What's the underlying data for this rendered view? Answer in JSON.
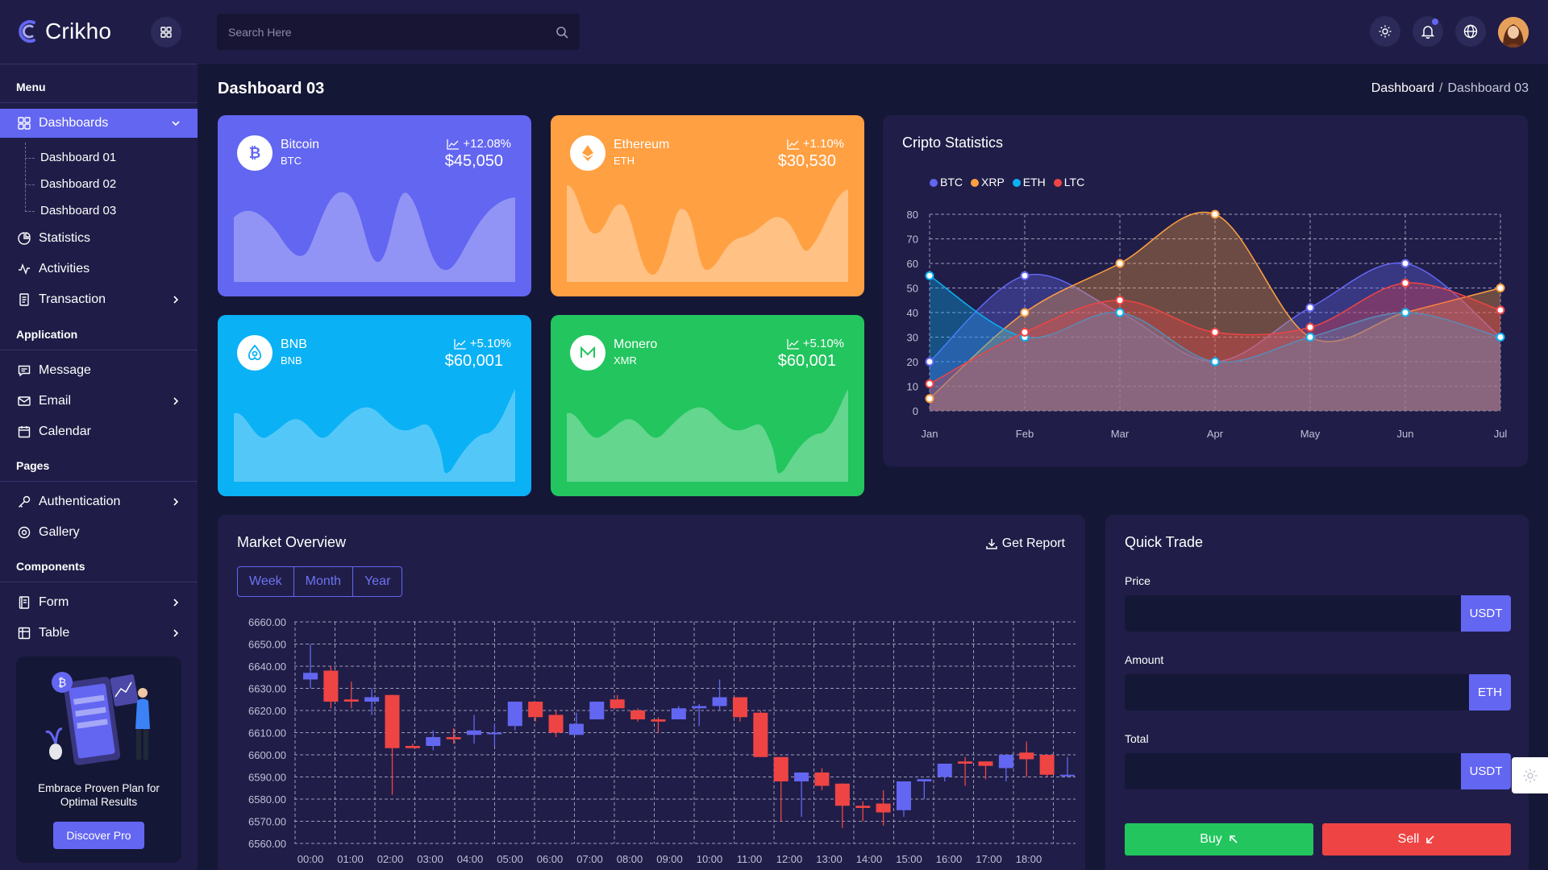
{
  "app": {
    "name": "Crikho"
  },
  "header": {
    "search_placeholder": "Search Here",
    "icons": [
      "grid-icon",
      "search-icon",
      "sun-icon",
      "bell-icon",
      "globe-icon"
    ]
  },
  "sidebar": {
    "sections": {
      "menu": "Menu",
      "application": "Application",
      "pages": "Pages",
      "components": "Components"
    },
    "dashboards": "Dashboards",
    "sub_items": [
      "Dashboard 01",
      "Dashboard 02",
      "Dashboard 03"
    ],
    "items": {
      "statistics": "Statistics",
      "activities": "Activities",
      "transaction": "Transaction",
      "message": "Message",
      "email": "Email",
      "calendar": "Calendar",
      "authentication": "Authentication",
      "gallery": "Gallery",
      "form": "Form",
      "table": "Table"
    },
    "promo": {
      "text": "Embrace Proven Plan for Optimal Results",
      "button": "Discover Pro"
    }
  },
  "page": {
    "title": "Dashboard 03",
    "breadcrumb": {
      "root": "Dashboard",
      "separator": "/",
      "current": "Dashboard 03"
    }
  },
  "coins": [
    {
      "name": "Bitcoin",
      "symbol": "BTC",
      "change": "+12.08%",
      "price": "$45,050",
      "color": "#6366f1"
    },
    {
      "name": "Ethereum",
      "symbol": "ETH",
      "change": "+1.10%",
      "price": "$30,530",
      "color": "#ffa042"
    },
    {
      "name": "BNB",
      "symbol": "BNB",
      "change": "+5.10%",
      "price": "$60,001",
      "color": "#0ab1f5"
    },
    {
      "name": "Monero",
      "symbol": "XMR",
      "change": "+5.10%",
      "price": "$60,001",
      "color": "#22c55e"
    }
  ],
  "crypto_stats": {
    "title": "Cripto Statistics"
  },
  "market": {
    "title": "Market Overview",
    "get_report": "Get Report",
    "tabs": [
      "Week",
      "Month",
      "Year"
    ]
  },
  "quick_trade": {
    "title": "Quick Trade",
    "price_label": "Price",
    "price_unit": "USDT",
    "amount_label": "Amount",
    "amount_unit": "ETH",
    "total_label": "Total",
    "total_unit": "USDT",
    "buy": "Buy",
    "sell": "Sell"
  },
  "chart_data": [
    {
      "type": "area",
      "title": "Cripto Statistics",
      "categories": [
        "Jan",
        "Feb",
        "Mar",
        "Apr",
        "May",
        "Jun",
        "Jul"
      ],
      "ylim": [
        0,
        80
      ],
      "yticks": [
        0,
        10,
        20,
        30,
        40,
        50,
        60,
        70,
        80
      ],
      "grid": true,
      "legend": "top-left",
      "series": [
        {
          "name": "BTC",
          "color": "#6366f1",
          "values": [
            20,
            55,
            40,
            20,
            42,
            60,
            30
          ]
        },
        {
          "name": "XRP",
          "color": "#ffa042",
          "values": [
            5,
            40,
            60,
            80,
            30,
            40,
            50
          ]
        },
        {
          "name": "ETH",
          "color": "#0ab1f5",
          "values": [
            55,
            30,
            40,
            20,
            30,
            40,
            30
          ]
        },
        {
          "name": "LTC",
          "color": "#ef4444",
          "values": [
            11,
            32,
            45,
            32,
            34,
            52,
            41
          ]
        }
      ]
    },
    {
      "type": "candlestick",
      "title": "Market Overview",
      "ylim": [
        6560,
        6660
      ],
      "yticks": [
        "6660.00",
        "6650.00",
        "6640.00",
        "6630.00",
        "6620.00",
        "6610.00",
        "6600.00",
        "6590.00",
        "6580.00",
        "6570.00",
        "6560.00"
      ],
      "xticks": [
        "00:00",
        "01:00",
        "02:00",
        "03:00",
        "04:00",
        "05:00",
        "06:00",
        "07:00",
        "08:00",
        "09:00",
        "10:00",
        "11:00",
        "12:00",
        "13:00",
        "14:00",
        "15:00",
        "16:00",
        "17:00",
        "18:00"
      ],
      "up_color": "#6366f1",
      "down_color": "#ef4444",
      "candles": [
        {
          "open": 6634,
          "close": 6637,
          "high": 6650,
          "low": 6630
        },
        {
          "open": 6638,
          "close": 6624,
          "high": 6640,
          "low": 6621
        },
        {
          "open": 6625,
          "close": 6624,
          "high": 6633,
          "low": 6621
        },
        {
          "open": 6624,
          "close": 6626,
          "high": 6630,
          "low": 6618
        },
        {
          "open": 6627,
          "close": 6603,
          "high": 6627,
          "low": 6582
        },
        {
          "open": 6604,
          "close": 6603,
          "high": 6605,
          "low": 6603
        },
        {
          "open": 6604,
          "close": 6608,
          "high": 6611,
          "low": 6602
        },
        {
          "open": 6608,
          "close": 6607,
          "high": 6612,
          "low": 6605
        },
        {
          "open": 6609,
          "close": 6611,
          "high": 6618,
          "low": 6605
        },
        {
          "open": 6610,
          "close": 6610,
          "high": 6614,
          "low": 6604
        },
        {
          "open": 6613,
          "close": 6624,
          "high": 6624,
          "low": 6611
        },
        {
          "open": 6624,
          "close": 6617,
          "high": 6624,
          "low": 6615
        },
        {
          "open": 6618,
          "close": 6610,
          "high": 6620,
          "low": 6608
        },
        {
          "open": 6609,
          "close": 6614,
          "high": 6619,
          "low": 6609
        },
        {
          "open": 6616,
          "close": 6624,
          "high": 6624,
          "low": 6616
        },
        {
          "open": 6625,
          "close": 6621,
          "high": 6627,
          "low": 6621
        },
        {
          "open": 6620,
          "close": 6616,
          "high": 6621,
          "low": 6615
        },
        {
          "open": 6616,
          "close": 6615,
          "high": 6617,
          "low": 6610
        },
        {
          "open": 6616,
          "close": 6621,
          "high": 6622,
          "low": 6616
        },
        {
          "open": 6621,
          "close": 6622,
          "high": 6623,
          "low": 6613
        },
        {
          "open": 6622,
          "close": 6626,
          "high": 6634,
          "low": 6620
        },
        {
          "open": 6626,
          "close": 6617,
          "high": 6626,
          "low": 6615
        },
        {
          "open": 6619,
          "close": 6599,
          "high": 6620,
          "low": 6599
        },
        {
          "open": 6599,
          "close": 6588,
          "high": 6598,
          "low": 6570
        },
        {
          "open": 6588,
          "close": 6592,
          "high": 6592,
          "low": 6572
        },
        {
          "open": 6592,
          "close": 6586,
          "high": 6594,
          "low": 6584
        },
        {
          "open": 6587,
          "close": 6577,
          "high": 6587,
          "low": 6567
        },
        {
          "open": 6577,
          "close": 6576,
          "high": 6579,
          "low": 6570
        },
        {
          "open": 6578,
          "close": 6574,
          "high": 6584,
          "low": 6568
        },
        {
          "open": 6575,
          "close": 6588,
          "high": 6588,
          "low": 6572
        },
        {
          "open": 6588,
          "close": 6589,
          "high": 6589,
          "low": 6580
        },
        {
          "open": 6590,
          "close": 6596,
          "high": 6596,
          "low": 6588
        },
        {
          "open": 6597,
          "close": 6596,
          "high": 6599,
          "low": 6586
        },
        {
          "open": 6597,
          "close": 6595,
          "high": 6597,
          "low": 6589
        },
        {
          "open": 6594,
          "close": 6600,
          "high": 6600,
          "low": 6588
        },
        {
          "open": 6601,
          "close": 6598,
          "high": 6606,
          "low": 6590
        },
        {
          "open": 6600,
          "close": 6591,
          "high": 6600,
          "low": 6590
        },
        {
          "open": 6591,
          "close": 6591,
          "high": 6599,
          "low": 6590
        }
      ]
    }
  ]
}
